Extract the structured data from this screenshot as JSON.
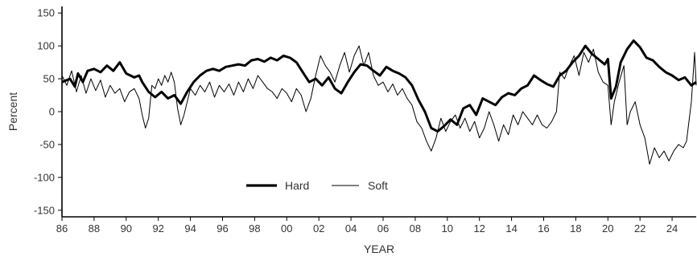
{
  "chart_data": {
    "type": "line",
    "title": "",
    "xlabel": "YEAR",
    "ylabel": "Percent",
    "xlim": [
      1986,
      2025.5
    ],
    "ylim": [
      -160,
      160
    ],
    "y_ticks": [
      150,
      100,
      50,
      0,
      -50,
      -100,
      -150
    ],
    "x_ticks": [
      {
        "year": 1986,
        "label": "86"
      },
      {
        "year": 1988,
        "label": "88"
      },
      {
        "year": 1990,
        "label": "90"
      },
      {
        "year": 1992,
        "label": "92"
      },
      {
        "year": 1994,
        "label": "94"
      },
      {
        "year": 1996,
        "label": "96"
      },
      {
        "year": 1998,
        "label": "98"
      },
      {
        "year": 2000,
        "label": "00"
      },
      {
        "year": 2002,
        "label": "02"
      },
      {
        "year": 2004,
        "label": "04"
      },
      {
        "year": 2006,
        "label": "06"
      },
      {
        "year": 2008,
        "label": "08"
      },
      {
        "year": 2010,
        "label": "10"
      },
      {
        "year": 2012,
        "label": "12"
      },
      {
        "year": 2014,
        "label": "14"
      },
      {
        "year": 2016,
        "label": "16"
      },
      {
        "year": 2018,
        "label": "18"
      },
      {
        "year": 2020,
        "label": "20"
      },
      {
        "year": 2022,
        "label": "22"
      },
      {
        "year": 2024,
        "label": "24"
      }
    ],
    "grid": false,
    "legend_position": "bottom-center",
    "series": [
      {
        "name": "Hard",
        "style": "thick",
        "color": "#000000",
        "points": [
          [
            1986.0,
            45
          ],
          [
            1986.5,
            50
          ],
          [
            1986.8,
            38
          ],
          [
            1987.0,
            58
          ],
          [
            1987.3,
            45
          ],
          [
            1987.6,
            62
          ],
          [
            1988.0,
            65
          ],
          [
            1988.4,
            60
          ],
          [
            1988.8,
            70
          ],
          [
            1989.2,
            62
          ],
          [
            1989.6,
            75
          ],
          [
            1990.0,
            58
          ],
          [
            1990.5,
            52
          ],
          [
            1990.8,
            55
          ],
          [
            1991.0,
            45
          ],
          [
            1991.4,
            30
          ],
          [
            1991.8,
            22
          ],
          [
            1992.2,
            30
          ],
          [
            1992.6,
            20
          ],
          [
            1993.0,
            25
          ],
          [
            1993.4,
            12
          ],
          [
            1993.8,
            30
          ],
          [
            1994.2,
            45
          ],
          [
            1994.6,
            55
          ],
          [
            1995.0,
            62
          ],
          [
            1995.4,
            65
          ],
          [
            1995.8,
            62
          ],
          [
            1996.2,
            68
          ],
          [
            1996.6,
            70
          ],
          [
            1997.0,
            72
          ],
          [
            1997.4,
            70
          ],
          [
            1997.8,
            78
          ],
          [
            1998.2,
            80
          ],
          [
            1998.6,
            76
          ],
          [
            1999.0,
            82
          ],
          [
            1999.4,
            78
          ],
          [
            1999.8,
            85
          ],
          [
            2000.2,
            82
          ],
          [
            2000.6,
            75
          ],
          [
            2001.0,
            60
          ],
          [
            2001.4,
            45
          ],
          [
            2001.8,
            50
          ],
          [
            2002.2,
            40
          ],
          [
            2002.6,
            52
          ],
          [
            2003.0,
            35
          ],
          [
            2003.4,
            28
          ],
          [
            2003.8,
            45
          ],
          [
            2004.2,
            60
          ],
          [
            2004.6,
            72
          ],
          [
            2005.0,
            70
          ],
          [
            2005.4,
            62
          ],
          [
            2005.8,
            55
          ],
          [
            2006.2,
            68
          ],
          [
            2006.6,
            62
          ],
          [
            2007.0,
            58
          ],
          [
            2007.4,
            52
          ],
          [
            2007.8,
            40
          ],
          [
            2008.2,
            18
          ],
          [
            2008.6,
            0
          ],
          [
            2009.0,
            -25
          ],
          [
            2009.4,
            -30
          ],
          [
            2009.8,
            -22
          ],
          [
            2010.2,
            -12
          ],
          [
            2010.6,
            -20
          ],
          [
            2011.0,
            5
          ],
          [
            2011.4,
            10
          ],
          [
            2011.8,
            -5
          ],
          [
            2012.2,
            20
          ],
          [
            2012.6,
            15
          ],
          [
            2013.0,
            10
          ],
          [
            2013.4,
            22
          ],
          [
            2013.8,
            28
          ],
          [
            2014.2,
            25
          ],
          [
            2014.6,
            35
          ],
          [
            2015.0,
            40
          ],
          [
            2015.4,
            55
          ],
          [
            2015.8,
            48
          ],
          [
            2016.2,
            42
          ],
          [
            2016.6,
            38
          ],
          [
            2017.0,
            55
          ],
          [
            2017.4,
            62
          ],
          [
            2017.8,
            75
          ],
          [
            2018.2,
            85
          ],
          [
            2018.6,
            100
          ],
          [
            2019.0,
            88
          ],
          [
            2019.4,
            80
          ],
          [
            2019.8,
            72
          ],
          [
            2020.0,
            80
          ],
          [
            2020.2,
            20
          ],
          [
            2020.5,
            38
          ],
          [
            2020.8,
            75
          ],
          [
            2021.2,
            95
          ],
          [
            2021.6,
            108
          ],
          [
            2022.0,
            98
          ],
          [
            2022.4,
            82
          ],
          [
            2022.8,
            78
          ],
          [
            2023.2,
            68
          ],
          [
            2023.6,
            60
          ],
          [
            2024.0,
            55
          ],
          [
            2024.4,
            48
          ],
          [
            2024.8,
            52
          ],
          [
            2025.2,
            40
          ],
          [
            2025.5,
            45
          ]
        ]
      },
      {
        "name": "Soft",
        "style": "thin",
        "color": "#000000",
        "points": [
          [
            1986.0,
            55
          ],
          [
            1986.3,
            40
          ],
          [
            1986.6,
            62
          ],
          [
            1986.9,
            30
          ],
          [
            1987.2,
            55
          ],
          [
            1987.5,
            28
          ],
          [
            1987.8,
            50
          ],
          [
            1988.1,
            32
          ],
          [
            1988.4,
            48
          ],
          [
            1988.7,
            22
          ],
          [
            1989.0,
            40
          ],
          [
            1989.3,
            28
          ],
          [
            1989.6,
            35
          ],
          [
            1989.9,
            15
          ],
          [
            1990.2,
            30
          ],
          [
            1990.5,
            35
          ],
          [
            1990.8,
            20
          ],
          [
            1991.0,
            -5
          ],
          [
            1991.2,
            -25
          ],
          [
            1991.4,
            -10
          ],
          [
            1991.6,
            40
          ],
          [
            1991.8,
            35
          ],
          [
            1992.0,
            50
          ],
          [
            1992.2,
            40
          ],
          [
            1992.4,
            55
          ],
          [
            1992.6,
            45
          ],
          [
            1992.8,
            60
          ],
          [
            1993.0,
            45
          ],
          [
            1993.2,
            5
          ],
          [
            1993.4,
            -20
          ],
          [
            1993.6,
            -5
          ],
          [
            1993.8,
            15
          ],
          [
            1994.0,
            35
          ],
          [
            1994.3,
            25
          ],
          [
            1994.6,
            40
          ],
          [
            1994.9,
            30
          ],
          [
            1995.2,
            45
          ],
          [
            1995.5,
            22
          ],
          [
            1995.8,
            40
          ],
          [
            1996.1,
            30
          ],
          [
            1996.4,
            42
          ],
          [
            1996.7,
            25
          ],
          [
            1997.0,
            45
          ],
          [
            1997.3,
            30
          ],
          [
            1997.6,
            50
          ],
          [
            1997.9,
            35
          ],
          [
            1998.2,
            55
          ],
          [
            1998.5,
            45
          ],
          [
            1998.8,
            35
          ],
          [
            1999.1,
            30
          ],
          [
            1999.4,
            20
          ],
          [
            1999.7,
            35
          ],
          [
            2000.0,
            28
          ],
          [
            2000.3,
            15
          ],
          [
            2000.6,
            35
          ],
          [
            2000.9,
            25
          ],
          [
            2001.2,
            0
          ],
          [
            2001.5,
            20
          ],
          [
            2001.8,
            55
          ],
          [
            2002.1,
            85
          ],
          [
            2002.4,
            70
          ],
          [
            2002.7,
            60
          ],
          [
            2003.0,
            45
          ],
          [
            2003.3,
            70
          ],
          [
            2003.6,
            90
          ],
          [
            2003.9,
            60
          ],
          [
            2004.2,
            85
          ],
          [
            2004.5,
            100
          ],
          [
            2004.8,
            70
          ],
          [
            2005.1,
            90
          ],
          [
            2005.4,
            55
          ],
          [
            2005.7,
            40
          ],
          [
            2006.0,
            45
          ],
          [
            2006.3,
            30
          ],
          [
            2006.6,
            42
          ],
          [
            2006.9,
            25
          ],
          [
            2007.2,
            35
          ],
          [
            2007.5,
            20
          ],
          [
            2007.8,
            10
          ],
          [
            2008.1,
            -15
          ],
          [
            2008.4,
            -25
          ],
          [
            2008.7,
            -45
          ],
          [
            2009.0,
            -60
          ],
          [
            2009.3,
            -40
          ],
          [
            2009.6,
            -10
          ],
          [
            2009.9,
            -30
          ],
          [
            2010.2,
            -15
          ],
          [
            2010.5,
            -5
          ],
          [
            2010.8,
            -25
          ],
          [
            2011.1,
            -10
          ],
          [
            2011.4,
            -30
          ],
          [
            2011.7,
            -15
          ],
          [
            2012.0,
            -40
          ],
          [
            2012.3,
            -25
          ],
          [
            2012.6,
            0
          ],
          [
            2012.9,
            -20
          ],
          [
            2013.2,
            -45
          ],
          [
            2013.5,
            -20
          ],
          [
            2013.8,
            -35
          ],
          [
            2014.1,
            -5
          ],
          [
            2014.4,
            -20
          ],
          [
            2014.7,
            0
          ],
          [
            2015.0,
            -10
          ],
          [
            2015.3,
            -20
          ],
          [
            2015.6,
            -5
          ],
          [
            2015.9,
            -20
          ],
          [
            2016.2,
            -25
          ],
          [
            2016.5,
            -15
          ],
          [
            2016.8,
            0
          ],
          [
            2017.0,
            60
          ],
          [
            2017.3,
            50
          ],
          [
            2017.6,
            70
          ],
          [
            2017.9,
            85
          ],
          [
            2018.2,
            55
          ],
          [
            2018.5,
            90
          ],
          [
            2018.8,
            75
          ],
          [
            2019.1,
            95
          ],
          [
            2019.4,
            60
          ],
          [
            2019.7,
            45
          ],
          [
            2020.0,
            40
          ],
          [
            2020.2,
            -20
          ],
          [
            2020.4,
            15
          ],
          [
            2020.7,
            45
          ],
          [
            2021.0,
            70
          ],
          [
            2021.2,
            -20
          ],
          [
            2021.4,
            0
          ],
          [
            2021.7,
            15
          ],
          [
            2022.0,
            -20
          ],
          [
            2022.3,
            -40
          ],
          [
            2022.6,
            -80
          ],
          [
            2022.9,
            -55
          ],
          [
            2023.2,
            -70
          ],
          [
            2023.5,
            -60
          ],
          [
            2023.8,
            -75
          ],
          [
            2024.1,
            -60
          ],
          [
            2024.4,
            -50
          ],
          [
            2024.7,
            -55
          ],
          [
            2024.9,
            -45
          ],
          [
            2025.2,
            15
          ],
          [
            2025.4,
            90
          ],
          [
            2025.5,
            40
          ]
        ]
      }
    ]
  }
}
